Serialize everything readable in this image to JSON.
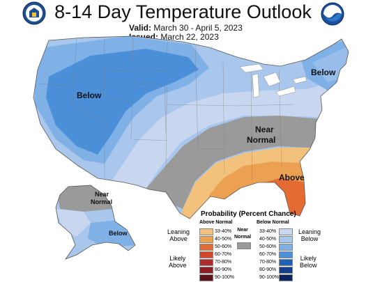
{
  "title": "8-14 Day Temperature Outlook",
  "valid": {
    "label": "Valid:",
    "value": "March 30 - April 5, 2023"
  },
  "issued": {
    "label": "Issued:",
    "value": "March 22, 2023"
  },
  "map_labels": {
    "below_west": "Below",
    "below_ne": "Below",
    "near_normal_1": "Near",
    "near_normal_2": "Normal",
    "above_se": "Above",
    "ak_near_1": "Near",
    "ak_near_2": "Normal",
    "ak_below": "Below"
  },
  "legend": {
    "title": "Probability (Percent Chance)",
    "above_header": "Above Normal",
    "below_header": "Below Normal",
    "near_normal": [
      "Near",
      "Normal"
    ],
    "leaning_above": [
      "Leaning",
      "Above"
    ],
    "likely_above": [
      "Likely",
      "Above"
    ],
    "leaning_below": [
      "Leaning",
      "Below"
    ],
    "likely_below": [
      "Likely",
      "Below"
    ],
    "ranges": [
      "33-40%",
      "40-50%",
      "50-60%",
      "60-70%",
      "70-80%",
      "80-90%",
      "90-100%"
    ],
    "above_colors": [
      "#f2c27c",
      "#eca152",
      "#e66b33",
      "#d2462b",
      "#b22a2a",
      "#8c1f25",
      "#5e1218"
    ],
    "below_colors": [
      "#c8d7ef",
      "#a9c6ec",
      "#7fb0e6",
      "#4c8fd9",
      "#1e63b8",
      "#153f8c",
      "#0c2460"
    ],
    "near_color": "#9a9a9a"
  }
}
